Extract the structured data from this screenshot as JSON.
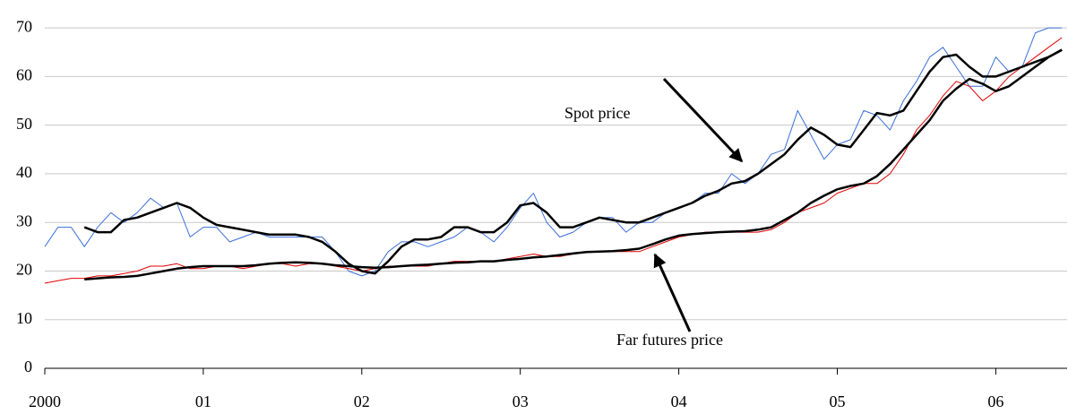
{
  "chart_data": {
    "type": "line",
    "x": [
      2000,
      2000.083,
      2000.167,
      2000.25,
      2000.333,
      2000.417,
      2000.5,
      2000.583,
      2000.667,
      2000.75,
      2000.833,
      2000.917,
      2001,
      2001.083,
      2001.167,
      2001.25,
      2001.333,
      2001.417,
      2001.5,
      2001.583,
      2001.667,
      2001.75,
      2001.833,
      2001.917,
      2002,
      2002.083,
      2002.167,
      2002.25,
      2002.333,
      2002.417,
      2002.5,
      2002.583,
      2002.667,
      2002.75,
      2002.833,
      2002.917,
      2003,
      2003.083,
      2003.167,
      2003.25,
      2003.333,
      2003.417,
      2003.5,
      2003.583,
      2003.667,
      2003.75,
      2003.833,
      2003.917,
      2004,
      2004.083,
      2004.167,
      2004.25,
      2004.333,
      2004.417,
      2004.5,
      2004.583,
      2004.667,
      2004.75,
      2004.833,
      2004.917,
      2005,
      2005.083,
      2005.167,
      2005.25,
      2005.333,
      2005.417,
      2005.5,
      2005.583,
      2005.667,
      2005.75,
      2005.833,
      2005.917,
      2006,
      2006.083,
      2006.167,
      2006.25,
      2006.333,
      2006.417
    ],
    "series": [
      {
        "color": "#3b6fd8",
        "width": 1,
        "values": [
          25,
          29,
          29,
          25,
          29,
          32,
          30,
          32,
          35,
          33,
          34,
          27,
          29,
          29,
          26,
          27,
          28,
          27,
          27,
          27,
          27,
          27,
          24,
          20,
          19,
          20,
          24,
          26,
          26,
          25,
          26,
          27,
          29,
          28,
          26,
          29,
          33,
          36,
          30,
          27,
          28,
          30,
          31,
          31,
          28,
          30,
          30,
          32,
          33,
          34,
          36,
          36,
          40,
          38,
          40,
          44,
          45,
          53,
          48,
          43,
          46,
          47,
          53,
          52,
          49,
          55,
          59,
          64,
          66,
          62,
          58,
          58,
          64,
          61,
          62,
          69,
          70,
          70
        ]
      },
      {
        "color": "#e00000",
        "width": 1,
        "values": [
          17.5,
          18,
          18.5,
          18.5,
          19,
          19,
          19.5,
          20,
          21,
          21,
          21.5,
          20.5,
          20.5,
          21,
          21,
          20.5,
          21,
          21.5,
          21.5,
          21,
          21.5,
          21.5,
          21,
          20.5,
          20,
          20.5,
          21,
          21,
          21,
          21,
          21.5,
          22,
          22,
          22,
          22,
          22.5,
          23,
          23.5,
          23,
          23,
          23.5,
          24,
          24,
          24,
          24,
          24,
          25,
          26,
          27,
          27.5,
          28,
          28,
          28,
          28,
          28,
          28.5,
          30,
          32,
          33,
          34,
          36,
          37,
          38,
          38,
          40,
          44,
          49,
          52,
          56,
          59,
          58,
          55,
          57,
          60,
          62,
          64,
          66,
          68
        ]
      },
      {
        "color": "#000000",
        "width": 2.5,
        "values": [
          null,
          null,
          null,
          29,
          28,
          28,
          30.5,
          31,
          32,
          33,
          34,
          33,
          31,
          29.5,
          29,
          28.5,
          28,
          27.5,
          27.5,
          27.5,
          27,
          26,
          24,
          21.5,
          20,
          19.5,
          22,
          25,
          26.5,
          26.5,
          27,
          29,
          29,
          28,
          28,
          30,
          33.5,
          34,
          32,
          29,
          29,
          30,
          31,
          30.5,
          30,
          30,
          31,
          32,
          33,
          34,
          35.5,
          36.5,
          38,
          38.5,
          40,
          42,
          44,
          47,
          49.5,
          48,
          46,
          45.5,
          49,
          52.5,
          52,
          53,
          57,
          61,
          64,
          64.5,
          62,
          60,
          60,
          61,
          62,
          63,
          64,
          65.5
        ]
      },
      {
        "color": "#000000",
        "width": 2.5,
        "values": [
          null,
          null,
          null,
          18.3,
          18.5,
          18.7,
          18.8,
          19,
          19.5,
          20,
          20.5,
          20.8,
          21,
          21,
          21,
          21,
          21.2,
          21.5,
          21.7,
          21.8,
          21.7,
          21.5,
          21.2,
          21,
          20.8,
          20.7,
          20.8,
          21,
          21.2,
          21.3,
          21.5,
          21.7,
          21.8,
          22,
          22,
          22.3,
          22.5,
          22.8,
          23,
          23.3,
          23.6,
          23.9,
          24,
          24.1,
          24.3,
          24.6,
          25.5,
          26.5,
          27.3,
          27.6,
          27.8,
          28,
          28.1,
          28.2,
          28.5,
          29,
          30.5,
          32,
          34,
          35.5,
          36.8,
          37.5,
          38,
          39.5,
          42,
          45,
          48,
          51,
          55,
          57.5,
          59.5,
          58.5,
          57,
          58,
          60,
          62,
          64,
          65.5
        ]
      }
    ],
    "xlim": [
      2000,
      2006.45
    ],
    "xticks": [
      {
        "value": 2000,
        "label": "2000"
      },
      {
        "value": 2001,
        "label": "01"
      },
      {
        "value": 2002,
        "label": "02"
      },
      {
        "value": 2003,
        "label": "03"
      },
      {
        "value": 2004,
        "label": "04"
      },
      {
        "value": 2005,
        "label": "05"
      },
      {
        "value": 2006,
        "label": "06"
      }
    ],
    "ylim": [
      0,
      75
    ],
    "yticks": [
      0,
      10,
      20,
      30,
      40,
      50,
      60,
      70
    ],
    "grid": true,
    "annotations": [
      "Spot price",
      "Far futures price"
    ]
  }
}
